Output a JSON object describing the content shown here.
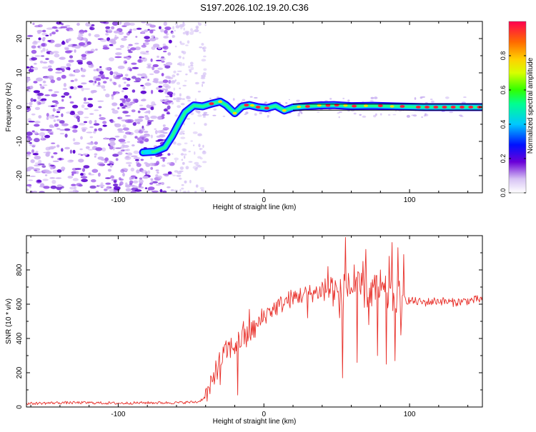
{
  "title": "S197.2026.102.19.20.C36",
  "chart_data": [
    {
      "type": "heatmap",
      "panel": "spectrogram",
      "xlabel": "Height of straight line (km)",
      "ylabel": "Frequency (Hz)",
      "xlim": [
        -163,
        150
      ],
      "ylim": [
        -25,
        25
      ],
      "xticks": [
        -100,
        0,
        100
      ],
      "yticks": [
        -20,
        -10,
        0,
        10,
        20
      ],
      "colorbar": {
        "label": "Normalized spectral amplitude",
        "range": [
          0,
          1
        ],
        "ticks": [
          0.0,
          0.2,
          0.4,
          0.6,
          0.8
        ]
      },
      "ridge_trace": [
        [
          -83,
          -13.2
        ],
        [
          -75,
          -13.0
        ],
        [
          -68,
          -11.8
        ],
        [
          -63,
          -8.5
        ],
        [
          -58,
          -4.5
        ],
        [
          -54,
          -1.5
        ],
        [
          -48,
          0.5
        ],
        [
          -42,
          0.2
        ],
        [
          -36,
          1.0
        ],
        [
          -30,
          1.6
        ],
        [
          -26,
          0.6
        ],
        [
          -20,
          -1.8
        ],
        [
          -15,
          0.2
        ],
        [
          -10,
          0.6
        ],
        [
          -4,
          0.0
        ],
        [
          2,
          -0.3
        ],
        [
          8,
          0.4
        ],
        [
          14,
          -1.0
        ],
        [
          20,
          -0.1
        ],
        [
          28,
          0.2
        ],
        [
          38,
          0.5
        ],
        [
          48,
          0.6
        ],
        [
          60,
          0.3
        ],
        [
          75,
          0.4
        ],
        [
          90,
          0.2
        ],
        [
          110,
          0.0
        ],
        [
          130,
          0.0
        ],
        [
          150,
          0.0
        ]
      ]
    },
    {
      "type": "line",
      "panel": "snr",
      "xlabel": "Height of straight line (km)",
      "ylabel": "SNR (10 * v/v)",
      "xlim": [
        -163,
        150
      ],
      "ylim": [
        0,
        1000
      ],
      "xticks": [
        -100,
        0,
        100
      ],
      "yticks": [
        0,
        200,
        400,
        600,
        800
      ],
      "series": [
        {
          "name": "SNR",
          "color": "#e8302a",
          "x": [
            -163,
            -140,
            -120,
            -100,
            -80,
            -60,
            -45,
            -40,
            -36,
            -32,
            -28,
            -24,
            -20,
            -16,
            -12,
            -8,
            -4,
            0,
            4,
            8,
            12,
            16,
            20,
            24,
            30,
            36,
            42,
            48,
            52,
            54,
            56,
            60,
            64,
            70,
            76,
            82,
            86,
            88,
            90,
            92,
            96,
            100,
            110,
            120,
            130,
            140,
            150
          ],
          "y": [
            20,
            25,
            25,
            22,
            25,
            25,
            30,
            60,
            120,
            230,
            300,
            340,
            360,
            390,
            420,
            440,
            480,
            530,
            560,
            580,
            600,
            620,
            640,
            650,
            660,
            670,
            680,
            690,
            640,
            660,
            700,
            690,
            680,
            680,
            670,
            660,
            650,
            640,
            640,
            630,
            630,
            620,
            610,
            620,
            610,
            620,
            630
          ],
          "spikes": [
            [
              -33,
              270
            ],
            [
              -30,
              130
            ],
            [
              -18,
              70
            ],
            [
              -14,
              500
            ],
            [
              -12,
              350
            ],
            [
              -10,
              570
            ],
            [
              -8,
              420
            ],
            [
              -4,
              470
            ],
            [
              2,
              550
            ],
            [
              20,
              600
            ],
            [
              30,
              520
            ],
            [
              44,
              820
            ],
            [
              48,
              680
            ],
            [
              52,
              520
            ],
            [
              54,
              170
            ],
            [
              56,
              990
            ],
            [
              58,
              780
            ],
            [
              62,
              830
            ],
            [
              64,
              260
            ],
            [
              68,
              850
            ],
            [
              70,
              920
            ],
            [
              72,
              480
            ],
            [
              76,
              770
            ],
            [
              78,
              300
            ],
            [
              80,
              800
            ],
            [
              84,
              250
            ],
            [
              86,
              880
            ],
            [
              88,
              960
            ],
            [
              90,
              270
            ],
            [
              92,
              930
            ],
            [
              94,
              420
            ],
            [
              96,
              890
            ]
          ]
        }
      ]
    }
  ]
}
